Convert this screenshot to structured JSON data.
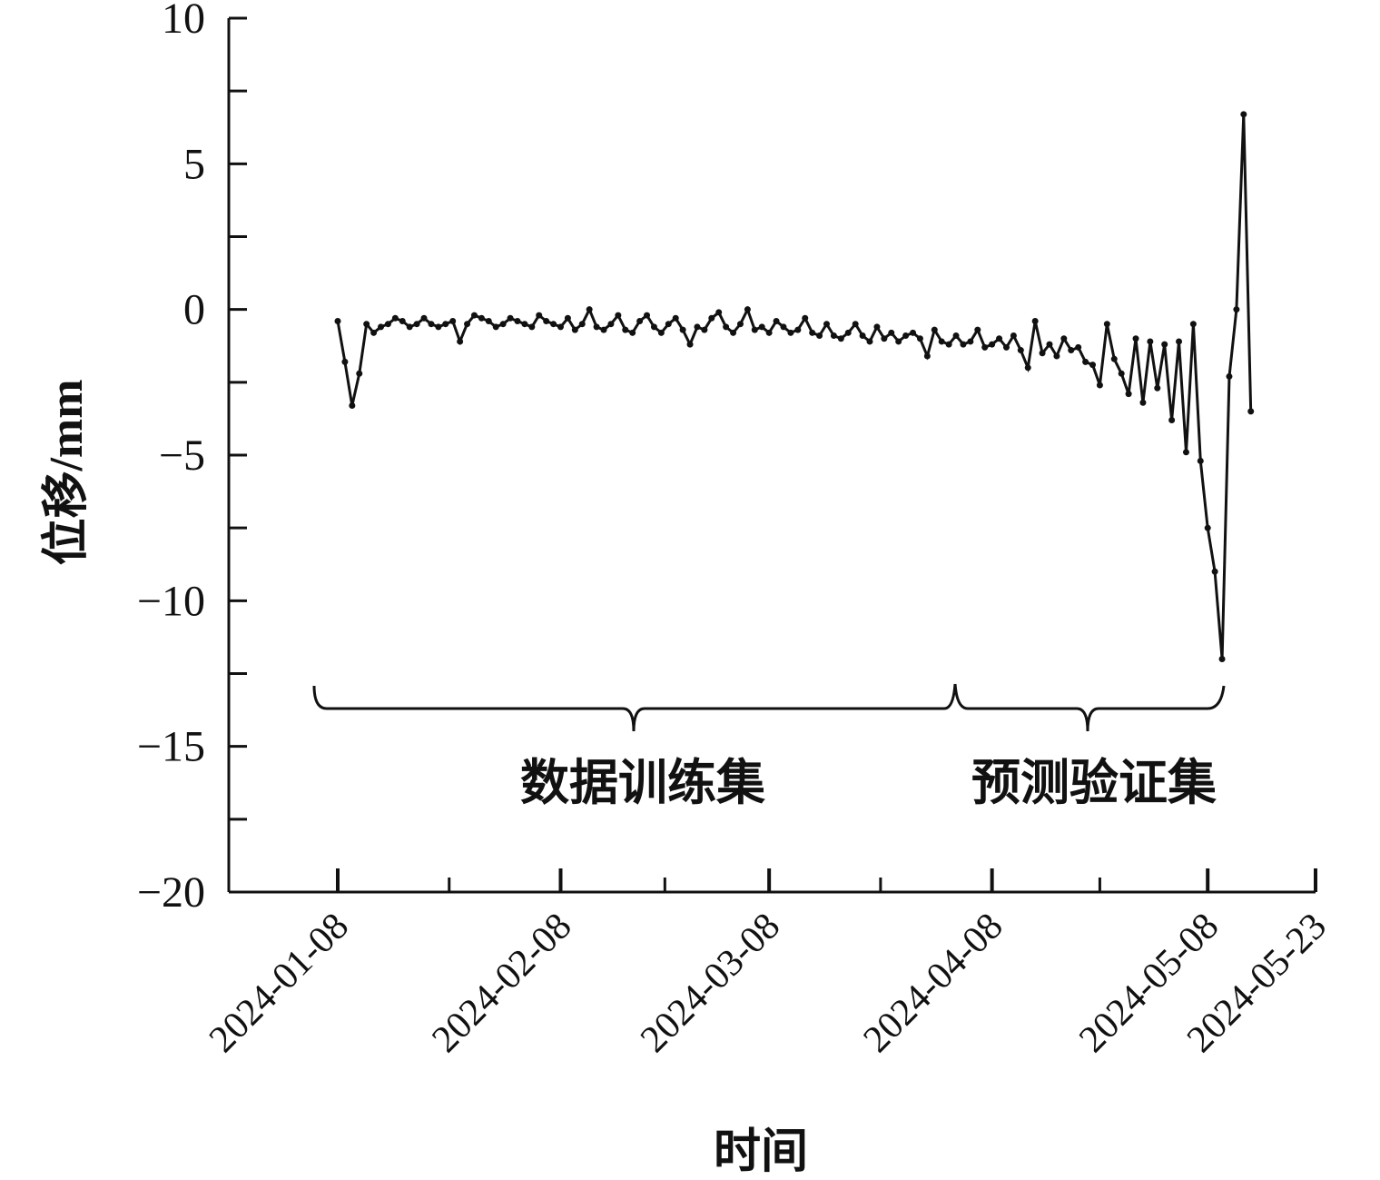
{
  "chart_data": {
    "type": "line",
    "x_label": "时间",
    "y_label": "位移/mm",
    "annotations": [
      "数据训练集",
      "预测验证集"
    ],
    "color": "#111111",
    "ylim": [
      -20,
      10
    ],
    "yticks": [
      {
        "value": -20,
        "label": "−20"
      },
      {
        "value": -15,
        "label": "−15"
      },
      {
        "value": -10,
        "label": "−10"
      },
      {
        "value": -5,
        "label": "−5"
      },
      0,
      5,
      10
    ],
    "xticks": [
      "2024-01-08",
      "2024-02-08",
      "2024-03-08",
      "2024-04-08",
      "2024-05-08",
      "2024-05-23"
    ],
    "x": [
      "2024-01-08",
      "2024-01-09",
      "2024-01-10",
      "2024-01-11",
      "2024-01-12",
      "2024-01-13",
      "2024-01-14",
      "2024-01-15",
      "2024-01-16",
      "2024-01-17",
      "2024-01-18",
      "2024-01-19",
      "2024-01-20",
      "2024-01-21",
      "2024-01-22",
      "2024-01-23",
      "2024-01-24",
      "2024-01-25",
      "2024-01-26",
      "2024-01-27",
      "2024-01-28",
      "2024-01-29",
      "2024-01-30",
      "2024-01-31",
      "2024-02-01",
      "2024-02-02",
      "2024-02-03",
      "2024-02-04",
      "2024-02-05",
      "2024-02-06",
      "2024-02-07",
      "2024-02-08",
      "2024-02-09",
      "2024-02-10",
      "2024-02-11",
      "2024-02-12",
      "2024-02-13",
      "2024-02-14",
      "2024-02-15",
      "2024-02-16",
      "2024-02-17",
      "2024-02-18",
      "2024-02-19",
      "2024-02-20",
      "2024-02-21",
      "2024-02-22",
      "2024-02-23",
      "2024-02-24",
      "2024-02-25",
      "2024-02-26",
      "2024-02-27",
      "2024-02-28",
      "2024-02-29",
      "2024-03-01",
      "2024-03-02",
      "2024-03-03",
      "2024-03-04",
      "2024-03-05",
      "2024-03-06",
      "2024-03-07",
      "2024-03-08",
      "2024-03-09",
      "2024-03-10",
      "2024-03-11",
      "2024-03-12",
      "2024-03-13",
      "2024-03-14",
      "2024-03-15",
      "2024-03-16",
      "2024-03-17",
      "2024-03-18",
      "2024-03-19",
      "2024-03-20",
      "2024-03-21",
      "2024-03-22",
      "2024-03-23",
      "2024-03-24",
      "2024-03-25",
      "2024-03-26",
      "2024-03-27",
      "2024-03-28",
      "2024-03-29",
      "2024-03-30",
      "2024-03-31",
      "2024-04-01",
      "2024-04-02",
      "2024-04-03",
      "2024-04-04",
      "2024-04-05",
      "2024-04-06",
      "2024-04-07",
      "2024-04-08",
      "2024-04-09",
      "2024-04-10",
      "2024-04-11",
      "2024-04-12",
      "2024-04-13",
      "2024-04-14",
      "2024-04-15",
      "2024-04-16",
      "2024-04-17",
      "2024-04-18",
      "2024-04-19",
      "2024-04-20",
      "2024-04-21",
      "2024-04-22",
      "2024-04-23",
      "2024-04-24",
      "2024-04-25",
      "2024-04-26",
      "2024-04-27",
      "2024-04-28",
      "2024-04-29",
      "2024-04-30",
      "2024-05-01",
      "2024-05-02",
      "2024-05-03",
      "2024-05-04",
      "2024-05-05",
      "2024-05-06",
      "2024-05-07",
      "2024-05-08",
      "2024-05-09",
      "2024-05-10",
      "2024-05-11",
      "2024-05-12",
      "2024-05-13",
      "2024-05-14"
    ],
    "values": [
      -0.4,
      -1.8,
      -3.3,
      -2.2,
      -0.5,
      -0.8,
      -0.6,
      -0.5,
      -0.3,
      -0.4,
      -0.6,
      -0.5,
      -0.3,
      -0.5,
      -0.6,
      -0.5,
      -0.4,
      -1.1,
      -0.5,
      -0.2,
      -0.3,
      -0.4,
      -0.6,
      -0.5,
      -0.3,
      -0.4,
      -0.5,
      -0.6,
      -0.2,
      -0.4,
      -0.5,
      -0.6,
      -0.3,
      -0.7,
      -0.5,
      0,
      -0.6,
      -0.7,
      -0.5,
      -0.2,
      -0.7,
      -0.8,
      -0.4,
      -0.2,
      -0.6,
      -0.8,
      -0.5,
      -0.3,
      -0.7,
      -1.2,
      -0.6,
      -0.7,
      -0.3,
      -0.1,
      -0.6,
      -0.8,
      -0.5,
      0,
      -0.7,
      -0.6,
      -0.8,
      -0.4,
      -0.6,
      -0.8,
      -0.7,
      -0.3,
      -0.8,
      -0.9,
      -0.5,
      -0.9,
      -1.0,
      -0.8,
      -0.5,
      -0.9,
      -1.1,
      -0.6,
      -1.0,
      -0.8,
      -1.1,
      -0.9,
      -0.8,
      -1.0,
      -1.6,
      -0.7,
      -1.1,
      -1.2,
      -0.9,
      -1.2,
      -1.1,
      -0.7,
      -1.3,
      -1.2,
      -1.0,
      -1.3,
      -0.9,
      -1.4,
      -2.0,
      -0.4,
      -1.5,
      -1.2,
      -1.6,
      -1.0,
      -1.4,
      -1.3,
      -1.8,
      -1.9,
      -2.6,
      -0.5,
      -1.7,
      -2.2,
      -2.9,
      -1.0,
      -3.2,
      -1.1,
      -2.7,
      -1.2,
      -3.8,
      -1.1,
      -4.9,
      -0.5,
      -5.2,
      -7.5,
      -9.0,
      -12.0,
      -2.3,
      0,
      6.7,
      -3.5
    ]
  }
}
